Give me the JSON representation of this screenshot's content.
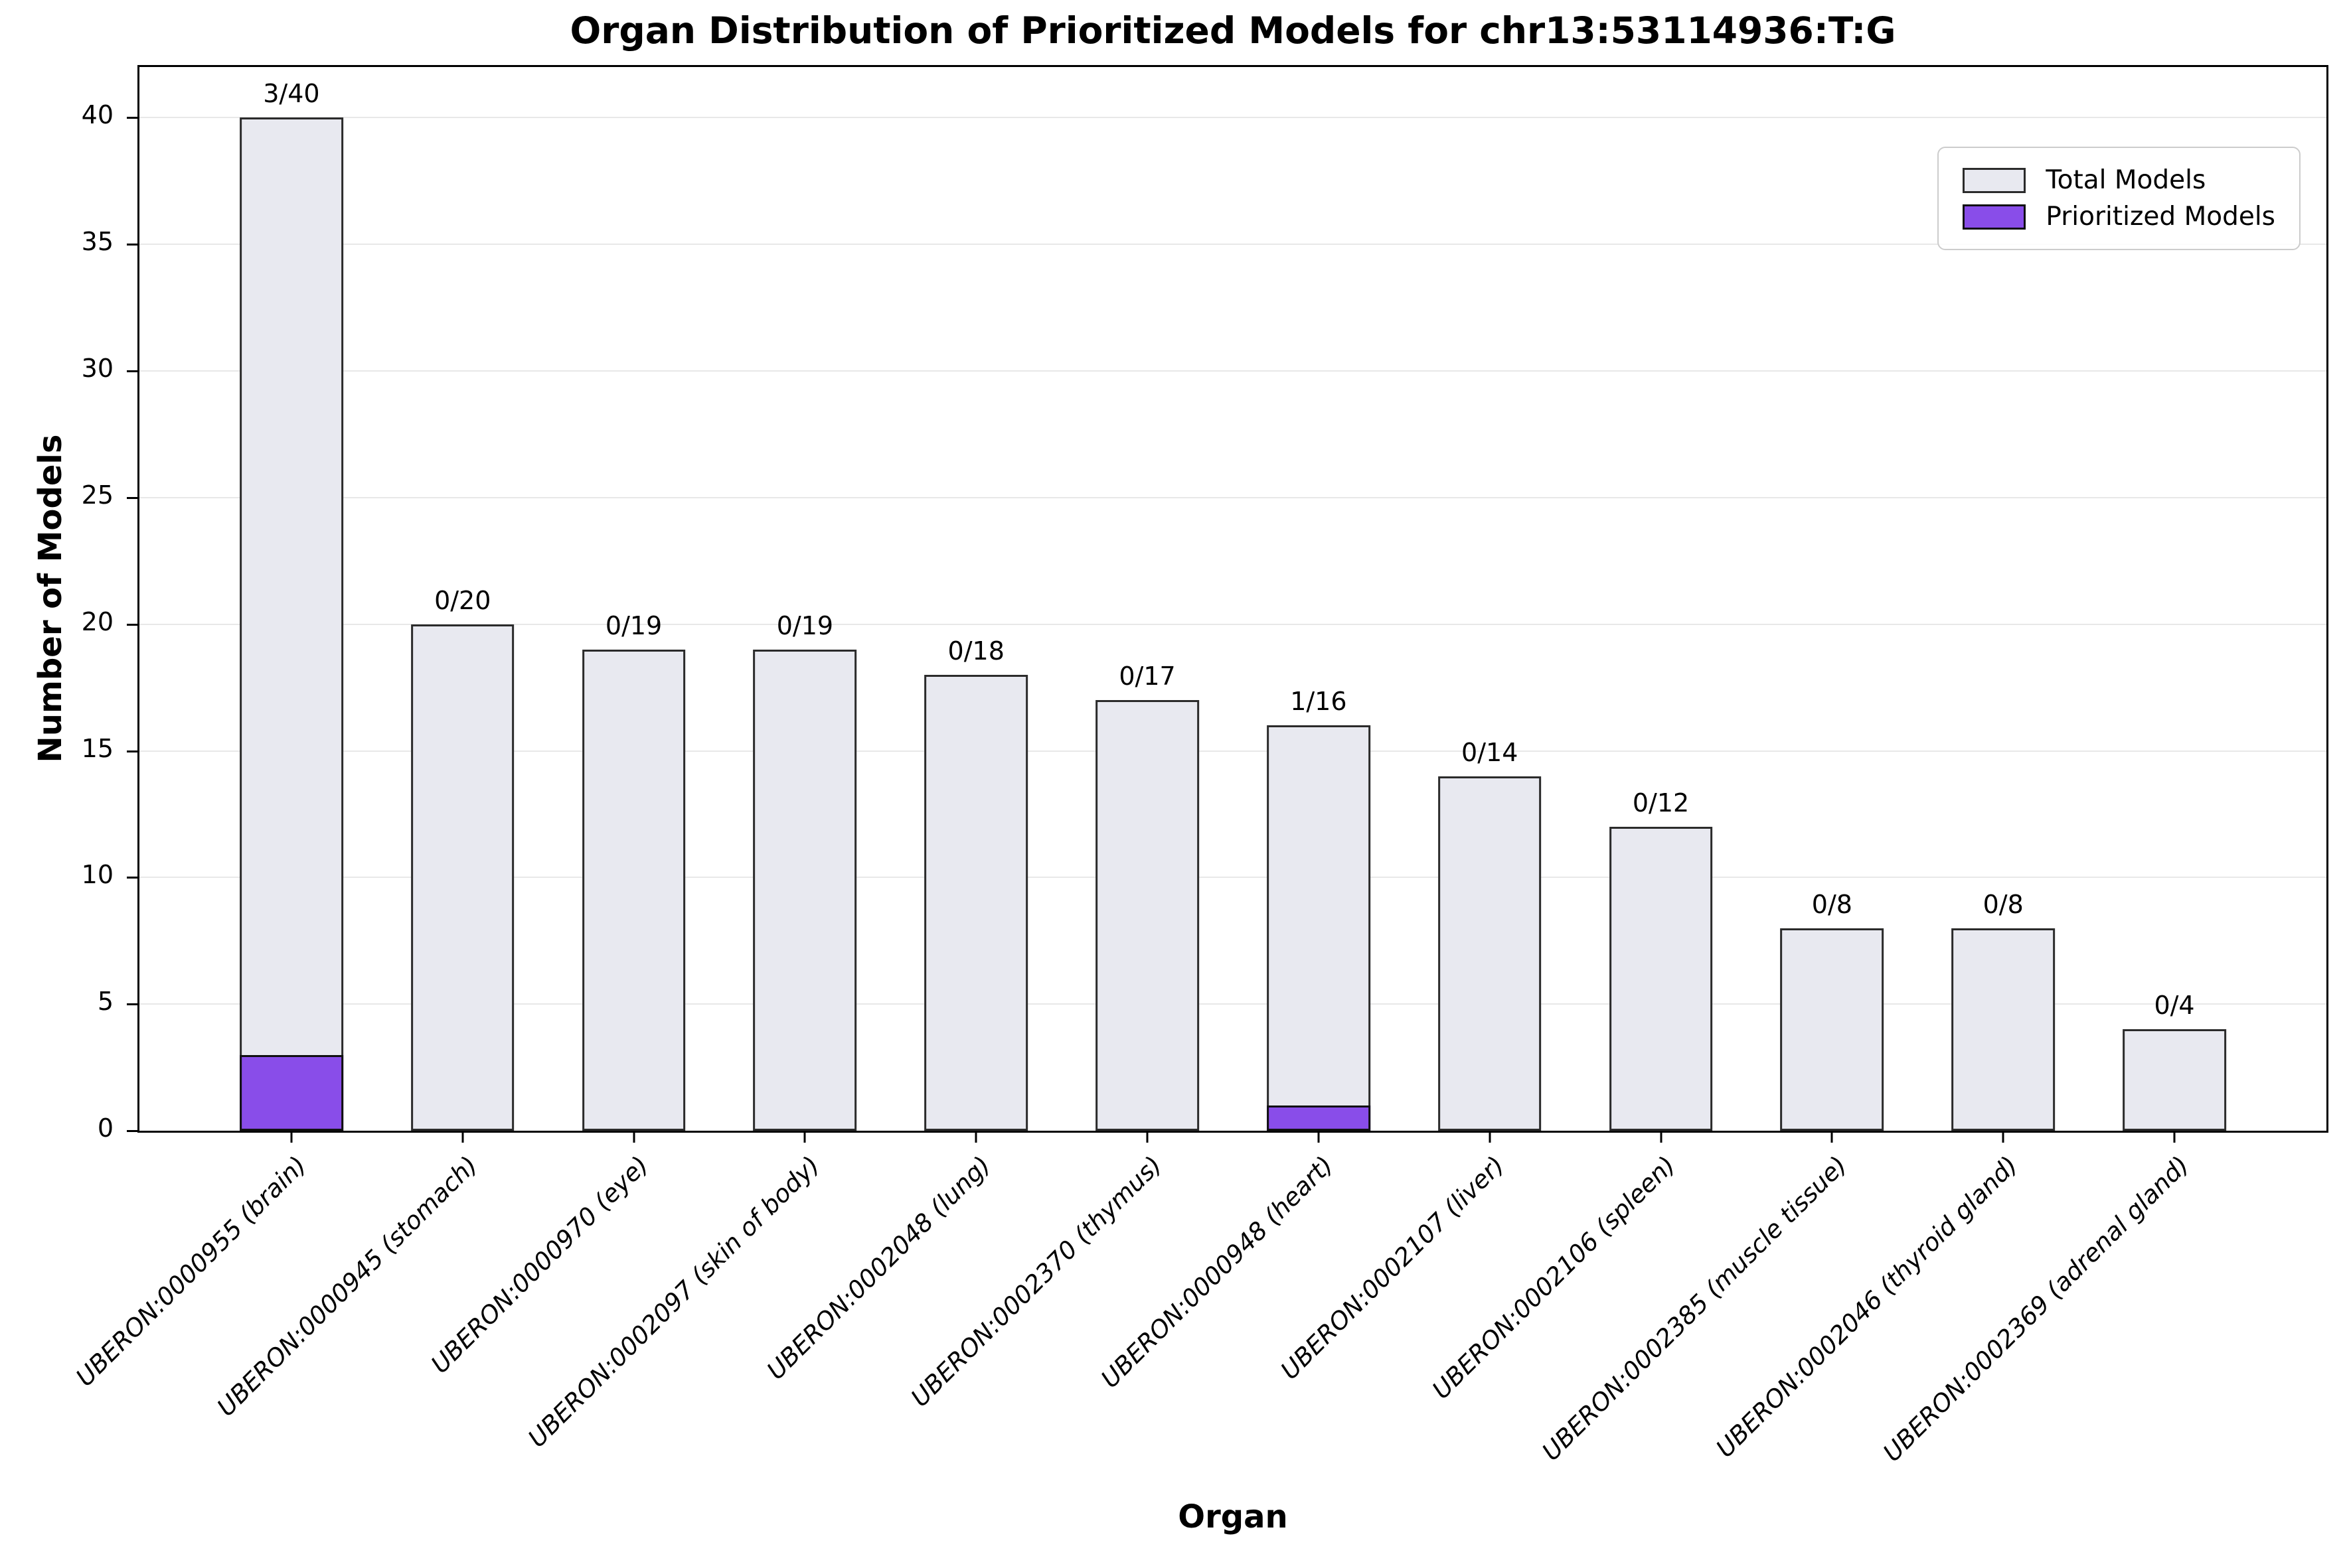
{
  "figure": {
    "title": "Organ Distribution of Prioritized Models for chr13:53114936:T:G"
  },
  "axes": {
    "xlabel": "Organ",
    "ylabel": "Number of Models"
  },
  "legend": {
    "entries": [
      {
        "label": "Total Models",
        "fill": "#E8E9F0",
        "edge": "#2B2B2B"
      },
      {
        "label": "Prioritized Models",
        "fill": "#894DE9",
        "edge": "#101010"
      }
    ]
  },
  "chart_data": {
    "type": "bar",
    "title": "Organ Distribution of Prioritized Models for chr13:53114936:T:G",
    "xlabel": "Organ",
    "ylabel": "Number of Models",
    "ylim": [
      0,
      42
    ],
    "yticks": [
      0,
      5,
      10,
      15,
      20,
      25,
      30,
      35,
      40
    ],
    "grid": true,
    "legend_position": "upper right",
    "categories": [
      "UBERON:0000955 (brain)",
      "UBERON:0000945 (stomach)",
      "UBERON:0000970 (eye)",
      "UBERON:0002097 (skin of body)",
      "UBERON:0002048 (lung)",
      "UBERON:0002370 (thymus)",
      "UBERON:0000948 (heart)",
      "UBERON:0002107 (liver)",
      "UBERON:0002106 (spleen)",
      "UBERON:0002385 (muscle tissue)",
      "UBERON:0002046 (thyroid gland)",
      "UBERON:0002369 (adrenal gland)"
    ],
    "series": [
      {
        "name": "Total Models",
        "values": [
          40,
          20,
          19,
          19,
          18,
          17,
          16,
          14,
          12,
          8,
          8,
          4
        ]
      },
      {
        "name": "Prioritized Models",
        "values": [
          3,
          0,
          0,
          0,
          0,
          0,
          1,
          0,
          0,
          0,
          0,
          0
        ]
      }
    ],
    "bar_labels": [
      "3/40",
      "0/20",
      "0/19",
      "0/19",
      "0/18",
      "0/17",
      "1/16",
      "0/14",
      "0/12",
      "0/8",
      "0/8",
      "0/4"
    ]
  },
  "colors": {
    "background": "#FFFFFF",
    "grid": "#E8E8E8",
    "spine": "#000000",
    "total_fill": "#E8E9F0",
    "total_edge": "#2B2B2B",
    "prioritized_fill": "#894DE9",
    "prioritized_edge": "#101010"
  }
}
